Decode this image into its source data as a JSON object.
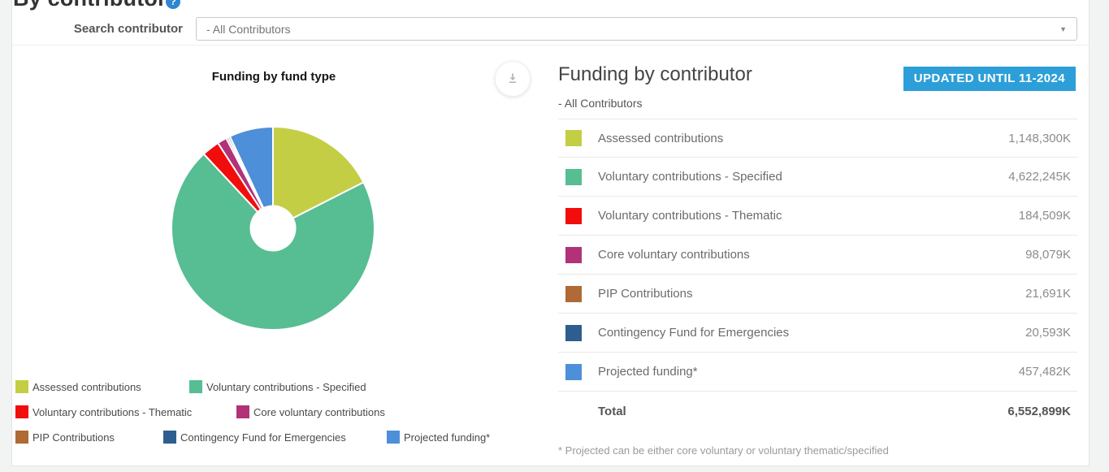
{
  "header": {
    "title": "By contributor",
    "search_label": "Search contributor",
    "dropdown_value": "- All Contributors"
  },
  "chart_panel": {
    "title": "Funding by fund type"
  },
  "details_panel": {
    "title": "Funding by contributor",
    "badge": "UPDATED UNTIL 11-2024",
    "badge_color": "#2d9fd8",
    "subtitle": "- All Contributors",
    "total_label": "Total",
    "total_value": "6,552,899K",
    "footnote": "* Projected can be either core voluntary or voluntary thematic/specified",
    "rows": [
      {
        "label": "Assessed contributions",
        "value": "1,148,300K",
        "color": "#c3ce45"
      },
      {
        "label": "Voluntary contributions - Specified",
        "value": "4,622,245K",
        "color": "#57bd93"
      },
      {
        "label": "Voluntary contributions - Thematic",
        "value": "184,509K",
        "color": "#f20d0d"
      },
      {
        "label": "Core voluntary contributions",
        "value": "98,079K",
        "color": "#b23278"
      },
      {
        "label": "PIP Contributions",
        "value": "21,691K",
        "color": "#af6a35"
      },
      {
        "label": "Contingency Fund for Emergencies",
        "value": "20,593K",
        "color": "#2e5e90"
      },
      {
        "label": "Projected funding*",
        "value": "457,482K",
        "color": "#4e8fd9"
      }
    ]
  },
  "chart_data": {
    "type": "pie",
    "title": "Funding by fund type",
    "donut": true,
    "categories": [
      "Assessed contributions",
      "Voluntary contributions - Specified",
      "Voluntary contributions - Thematic",
      "Core voluntary contributions",
      "PIP Contributions",
      "Contingency Fund for Emergencies",
      "Projected funding*"
    ],
    "values": [
      1148300,
      4622245,
      184509,
      98079,
      21691,
      20593,
      457482
    ],
    "unit": "K",
    "total": 6552899,
    "colors": [
      "#c3ce45",
      "#57bd93",
      "#f20d0d",
      "#b23278",
      "#af6a35",
      "#2e5e90",
      "#4e8fd9"
    ],
    "legend_position": "bottom",
    "start_angle": "12 o'clock, clockwise"
  }
}
